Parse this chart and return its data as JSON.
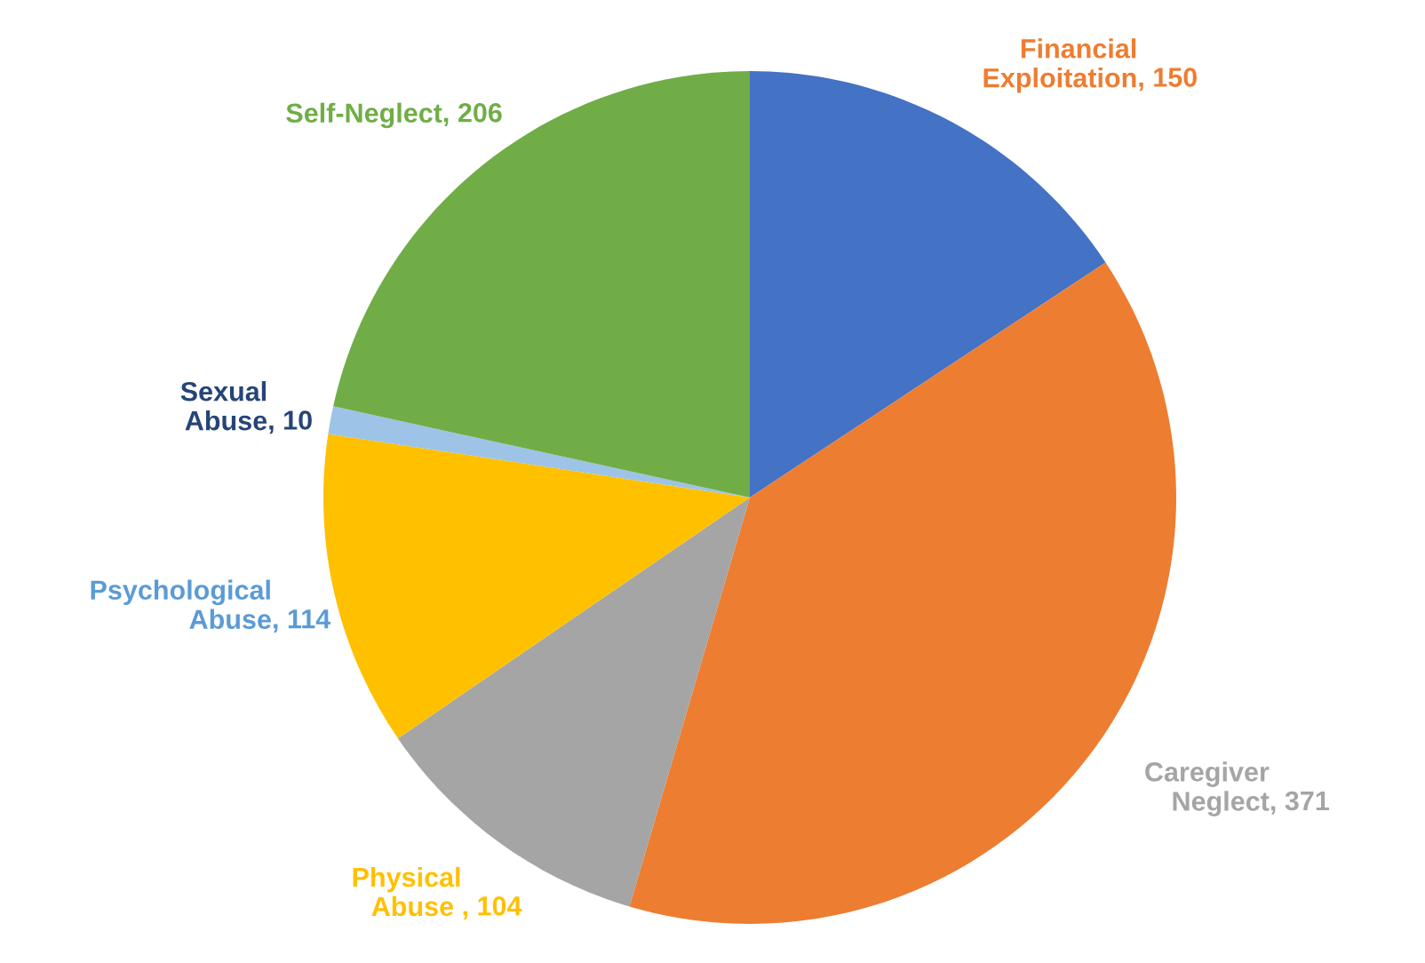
{
  "chart_data": {
    "type": "pie",
    "categories": [
      "Financial Exploitation",
      "Caregiver Neglect",
      "Physical Abuse ",
      "Psychological Abuse",
      "Sexual Abuse",
      "Self-Neglect"
    ],
    "values": [
      150,
      371,
      104,
      114,
      10,
      206
    ],
    "colors": [
      "#4472c4",
      "#ed7d31",
      "#a5a5a5",
      "#ffc000",
      "#9dc3e6",
      "#70ad47"
    ],
    "value_labels": [
      ", 150",
      ", 371",
      ", 104",
      ", 114",
      ", 10",
      ", 206"
    ],
    "legend": false
  }
}
